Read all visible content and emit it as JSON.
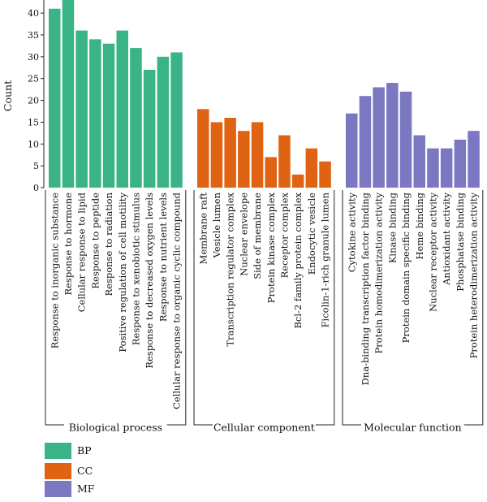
{
  "chart_data": {
    "type": "bar",
    "ylabel": "Count",
    "ylim": [
      0,
      43
    ],
    "yticks": [
      0,
      5,
      10,
      15,
      20,
      25,
      30,
      35,
      40
    ],
    "groups": [
      {
        "name": "Biological process",
        "series": "BP",
        "color": "#3ab486",
        "categories": [
          "Response to inorganic substance",
          "Response to hormone",
          "Cellular response to lipid",
          "Response to peptide",
          "Response to radiation",
          "Positive regulation of cell motility",
          "Response to xenobiotic stimulus",
          "Response to decreased oxygen levels",
          "Response to nutrient levels",
          "Cellular response to organic cyclic compound"
        ],
        "values": [
          41,
          43,
          36,
          34,
          33,
          36,
          32,
          27,
          30,
          31
        ]
      },
      {
        "name": "Cellular component",
        "series": "CC",
        "color": "#df6312",
        "categories": [
          "Membrane raft",
          "Vesicle lumen",
          "Transcription regulator complex",
          "Nuclear envelope",
          "Side of membrane",
          "Protein kinase complex",
          "Receptor complex",
          "Bcl-2 family protein complex",
          "Endocytic vesicle",
          "Ficolin-1-rich granule lumen"
        ],
        "values": [
          18,
          15,
          16,
          13,
          15,
          7,
          12,
          3,
          9,
          6
        ]
      },
      {
        "name": "Molecular function",
        "series": "MF",
        "color": "#7c77c1",
        "categories": [
          "Cytokine activity",
          "Dna-binding transcription factor binding",
          "Protein homodimerization activity",
          "Kinase binding",
          "Protein domain specific binding",
          "Heme binding",
          "Nuclear receptor activity",
          "Antioxidant activity",
          "Phosphatase binding",
          "Protein heterodimerization activity"
        ],
        "values": [
          17,
          21,
          23,
          24,
          22,
          12,
          9,
          9,
          11,
          13
        ]
      }
    ],
    "legend": {
      "placement": "bottom-left",
      "entries": [
        {
          "label": "BP",
          "color": "#3ab486"
        },
        {
          "label": "CC",
          "color": "#df6312"
        },
        {
          "label": "MF",
          "color": "#7c77c1"
        }
      ]
    }
  }
}
